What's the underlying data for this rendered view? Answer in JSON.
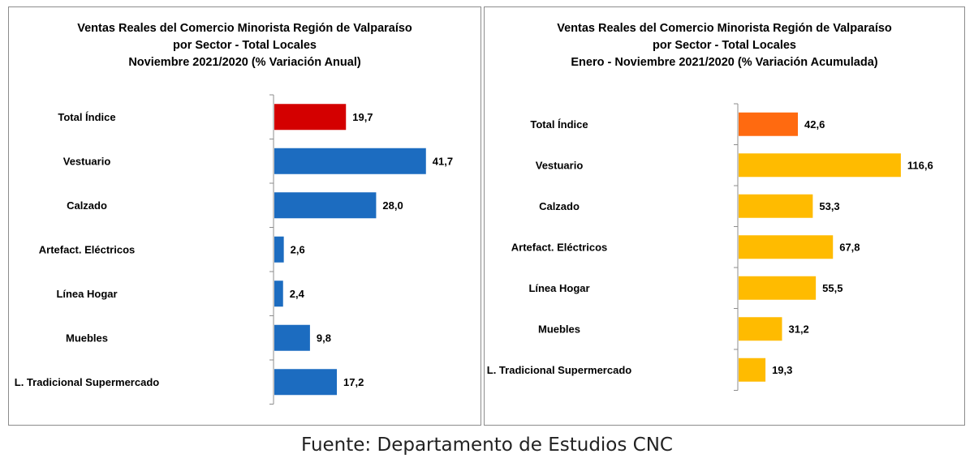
{
  "chart_data": [
    {
      "type": "bar",
      "orientation": "horizontal",
      "title": [
        "Ventas Reales del Comercio Minorista Región de Valparaíso",
        "por Sector - Total Locales",
        "Noviembre 2021/2020 (% Variación Anual)"
      ],
      "categories": [
        "Total Índice",
        "Vestuario",
        "Calzado",
        "Artefact. Eléctricos",
        "Línea Hogar",
        "Muebles",
        "L. Tradicional Supermercado"
      ],
      "values": [
        19.7,
        41.7,
        28.0,
        2.6,
        2.4,
        9.8,
        17.2
      ],
      "value_labels": [
        "19,7",
        "41,7",
        "28,0",
        "2,6",
        "2,4",
        "9,8",
        "17,2"
      ],
      "colors": [
        "#d40000",
        "#1c6cc0",
        "#1c6cc0",
        "#1c6cc0",
        "#1c6cc0",
        "#1c6cc0",
        "#1c6cc0"
      ],
      "xlim": [
        0,
        48
      ],
      "grid": false,
      "legend": "none"
    },
    {
      "type": "bar",
      "orientation": "horizontal",
      "title": [
        "Ventas Reales del Comercio Minorista Región de Valparaíso",
        "por Sector  - Total Locales",
        "Enero - Noviembre 2021/2020 (% Variación Acumulada)"
      ],
      "categories": [
        "Total Índice",
        "Vestuario",
        "Calzado",
        "Artefact. Eléctricos",
        "Línea Hogar",
        "Muebles",
        "L. Tradicional Supermercado"
      ],
      "values": [
        42.6,
        116.6,
        53.3,
        67.8,
        55.5,
        31.2,
        19.3
      ],
      "value_labels": [
        "42,6",
        "116,6",
        "53,3",
        "67,8",
        "55,5",
        "31,2",
        "19,3"
      ],
      "colors": [
        "#ff6a10",
        "#ffbb00",
        "#ffbb00",
        "#ffbb00",
        "#ffbb00",
        "#ffbb00",
        "#ffbb00"
      ],
      "xlim": [
        0,
        140
      ],
      "grid": false,
      "legend": "none"
    }
  ],
  "footer": "Fuente: Departamento de Estudios CNC"
}
